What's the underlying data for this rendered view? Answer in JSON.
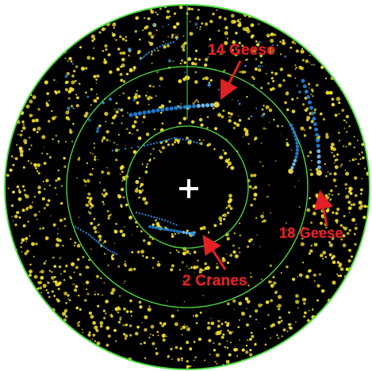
{
  "radar": {
    "ring_color": "#4fe043",
    "background_color": "#000000",
    "clutter_color": "#f1df2a",
    "target_color": "#26a0ea",
    "label_color": "#e32125",
    "center_marker": "crosshair-plus"
  },
  "annotations": [
    {
      "id": "geese_14",
      "text": "14 Geese"
    },
    {
      "id": "geese_18",
      "text": "18 Geese"
    },
    {
      "id": "cranes_2",
      "text": "2 Cranes"
    }
  ]
}
